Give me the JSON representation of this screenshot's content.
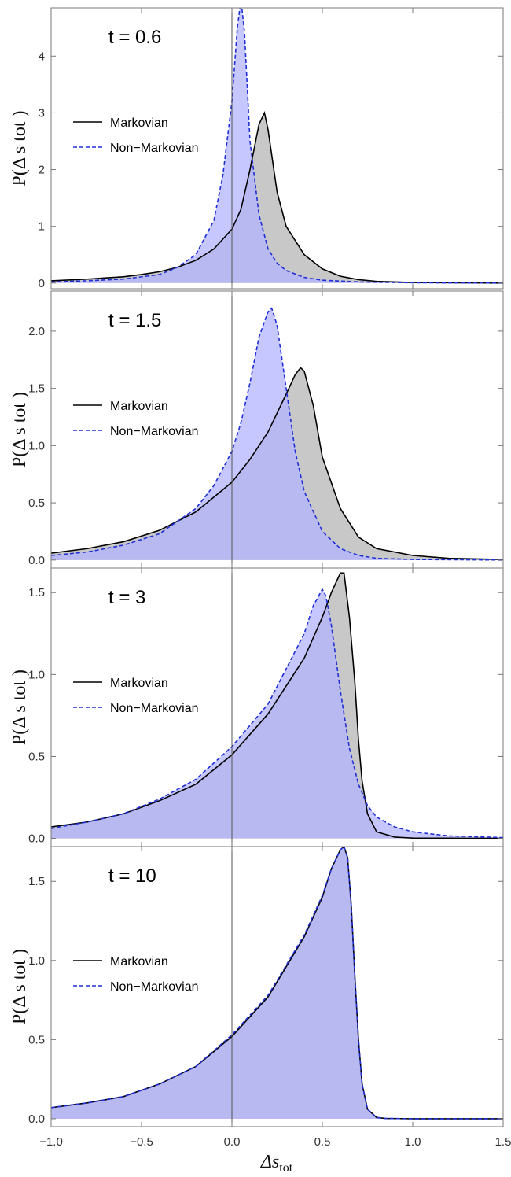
{
  "chart_data": [
    {
      "type": "area",
      "title": "t = 0.6",
      "ylabel": "P(Δ s tot )",
      "xlim": [
        -1.0,
        1.5
      ],
      "ylim": [
        -0.1,
        4.85
      ],
      "yticks": [
        0,
        1,
        2,
        3,
        4
      ],
      "legend": {
        "placement": "left",
        "entries": [
          "Markovian",
          "Non−Markovian"
        ]
      },
      "series": [
        {
          "name": "Markovian",
          "style": "solid",
          "color": "#000000",
          "fill": "#c8c8c8",
          "x": [
            -1.0,
            -0.8,
            -0.6,
            -0.5,
            -0.4,
            -0.3,
            -0.2,
            -0.1,
            0.0,
            0.05,
            0.1,
            0.15,
            0.18,
            0.2,
            0.25,
            0.3,
            0.4,
            0.5,
            0.6,
            0.7,
            0.8,
            1.0,
            1.5
          ],
          "y": [
            0.04,
            0.07,
            0.11,
            0.15,
            0.2,
            0.28,
            0.4,
            0.6,
            0.95,
            1.3,
            2.0,
            2.8,
            3.0,
            2.7,
            1.6,
            1.0,
            0.5,
            0.25,
            0.12,
            0.06,
            0.03,
            0.01,
            0.0
          ]
        },
        {
          "name": "Non−Markovian",
          "style": "dashed",
          "color": "#1f2fd6",
          "fill": "#b4b4ff",
          "x": [
            -1.0,
            -0.8,
            -0.6,
            -0.4,
            -0.3,
            -0.2,
            -0.1,
            -0.05,
            0.0,
            0.03,
            0.05,
            0.07,
            0.1,
            0.15,
            0.2,
            0.25,
            0.3,
            0.4,
            0.5,
            0.7,
            1.0,
            1.5
          ],
          "y": [
            0.02,
            0.04,
            0.07,
            0.15,
            0.28,
            0.5,
            1.1,
            1.9,
            3.2,
            4.5,
            5.0,
            4.4,
            2.5,
            1.2,
            0.6,
            0.35,
            0.22,
            0.1,
            0.05,
            0.02,
            0.005,
            0.0
          ]
        }
      ]
    },
    {
      "type": "area",
      "title": "t = 1.5",
      "ylabel": "P(Δ s tot )",
      "xlim": [
        -1.0,
        1.5
      ],
      "ylim": [
        -0.07,
        2.35
      ],
      "yticks": [
        0.0,
        0.5,
        1.0,
        1.5,
        2.0
      ],
      "legend": {
        "placement": "left",
        "entries": [
          "Markovian",
          "Non−Markovian"
        ]
      },
      "series": [
        {
          "name": "Markovian",
          "style": "solid",
          "color": "#000000",
          "fill": "#c8c8c8",
          "x": [
            -1.0,
            -0.8,
            -0.6,
            -0.4,
            -0.2,
            0.0,
            0.1,
            0.2,
            0.3,
            0.35,
            0.38,
            0.4,
            0.45,
            0.5,
            0.6,
            0.7,
            0.8,
            1.0,
            1.2,
            1.5
          ],
          "y": [
            0.06,
            0.1,
            0.16,
            0.26,
            0.42,
            0.68,
            0.88,
            1.12,
            1.45,
            1.62,
            1.68,
            1.65,
            1.35,
            0.9,
            0.45,
            0.2,
            0.1,
            0.04,
            0.015,
            0.005
          ]
        },
        {
          "name": "Non−Markovian",
          "style": "dashed",
          "color": "#1f2fd6",
          "fill": "#b4b4ff",
          "x": [
            -1.0,
            -0.8,
            -0.6,
            -0.4,
            -0.2,
            -0.1,
            0.0,
            0.05,
            0.1,
            0.15,
            0.2,
            0.22,
            0.25,
            0.3,
            0.35,
            0.4,
            0.5,
            0.6,
            0.7,
            0.8,
            1.0,
            1.5
          ],
          "y": [
            0.04,
            0.07,
            0.13,
            0.23,
            0.45,
            0.65,
            0.95,
            1.2,
            1.55,
            1.95,
            2.17,
            2.2,
            2.05,
            1.5,
            0.95,
            0.6,
            0.25,
            0.1,
            0.04,
            0.015,
            0.005,
            0.0
          ]
        }
      ]
    },
    {
      "type": "area",
      "title": "t = 3",
      "ylabel": "P(Δ s tot )",
      "xlim": [
        -1.0,
        1.5
      ],
      "ylim": [
        -0.05,
        1.65
      ],
      "yticks": [
        0.0,
        0.5,
        1.0,
        1.5
      ],
      "legend": {
        "placement": "left",
        "entries": [
          "Markovian",
          "Non−Markovian"
        ]
      },
      "series": [
        {
          "name": "Markovian",
          "style": "solid",
          "color": "#000000",
          "fill": "#c8c8c8",
          "x": [
            -1.0,
            -0.8,
            -0.6,
            -0.4,
            -0.2,
            0.0,
            0.2,
            0.4,
            0.5,
            0.55,
            0.6,
            0.62,
            0.65,
            0.68,
            0.7,
            0.72,
            0.75,
            0.8,
            0.9,
            1.0,
            1.5
          ],
          "y": [
            0.07,
            0.1,
            0.15,
            0.23,
            0.33,
            0.51,
            0.76,
            1.1,
            1.35,
            1.5,
            1.62,
            1.62,
            1.35,
            0.95,
            0.6,
            0.35,
            0.15,
            0.04,
            0.008,
            0.002,
            0.0
          ]
        },
        {
          "name": "Non−Markovian",
          "style": "dashed",
          "color": "#1f2fd6",
          "fill": "#b4b4ff",
          "x": [
            -1.0,
            -0.8,
            -0.6,
            -0.4,
            -0.2,
            0.0,
            0.2,
            0.4,
            0.45,
            0.5,
            0.52,
            0.55,
            0.6,
            0.65,
            0.7,
            0.75,
            0.8,
            0.9,
            1.0,
            1.2,
            1.5
          ],
          "y": [
            0.06,
            0.1,
            0.15,
            0.24,
            0.36,
            0.56,
            0.82,
            1.25,
            1.42,
            1.52,
            1.48,
            1.3,
            0.9,
            0.55,
            0.33,
            0.2,
            0.13,
            0.07,
            0.04,
            0.015,
            0.005
          ]
        }
      ]
    },
    {
      "type": "area",
      "title": "t = 10",
      "ylabel": "P(Δ s tot )",
      "xlabel": "Δs",
      "xlabel_sub": "tot",
      "xlim": [
        -1.0,
        1.5
      ],
      "xticks": [
        -1.0,
        -0.5,
        0.0,
        0.5,
        1.0,
        1.5
      ],
      "xticklabels": [
        "−1.0",
        "−0.5",
        "0.0",
        "0.5",
        "1.0",
        "1.5"
      ],
      "ylim": [
        -0.05,
        1.72
      ],
      "yticks": [
        0.0,
        0.5,
        1.0,
        1.5
      ],
      "legend": {
        "placement": "left",
        "entries": [
          "Markovian",
          "Non−Markovian"
        ]
      },
      "series": [
        {
          "name": "Markovian",
          "style": "solid",
          "color": "#000000",
          "fill": "#c8c8c8",
          "x": [
            -1.0,
            -0.8,
            -0.6,
            -0.4,
            -0.2,
            0.0,
            0.2,
            0.4,
            0.5,
            0.55,
            0.6,
            0.62,
            0.64,
            0.66,
            0.68,
            0.7,
            0.72,
            0.75,
            0.8,
            0.85,
            1.0,
            1.5
          ],
          "y": [
            0.07,
            0.1,
            0.14,
            0.22,
            0.33,
            0.52,
            0.77,
            1.15,
            1.4,
            1.58,
            1.7,
            1.72,
            1.65,
            1.35,
            0.9,
            0.5,
            0.22,
            0.06,
            0.008,
            0.002,
            0.0,
            0.0
          ]
        },
        {
          "name": "Non−Markovian",
          "style": "dashed",
          "color": "#1f2fd6",
          "fill": "#b4b4ff",
          "x": [
            -1.0,
            -0.8,
            -0.6,
            -0.4,
            -0.2,
            0.0,
            0.2,
            0.4,
            0.5,
            0.55,
            0.6,
            0.62,
            0.64,
            0.66,
            0.68,
            0.7,
            0.72,
            0.75,
            0.8,
            0.85,
            1.0,
            1.5
          ],
          "y": [
            0.07,
            0.1,
            0.14,
            0.22,
            0.33,
            0.53,
            0.78,
            1.16,
            1.41,
            1.58,
            1.7,
            1.72,
            1.65,
            1.35,
            0.9,
            0.5,
            0.22,
            0.06,
            0.008,
            0.002,
            0.0,
            0.0
          ]
        }
      ]
    }
  ]
}
